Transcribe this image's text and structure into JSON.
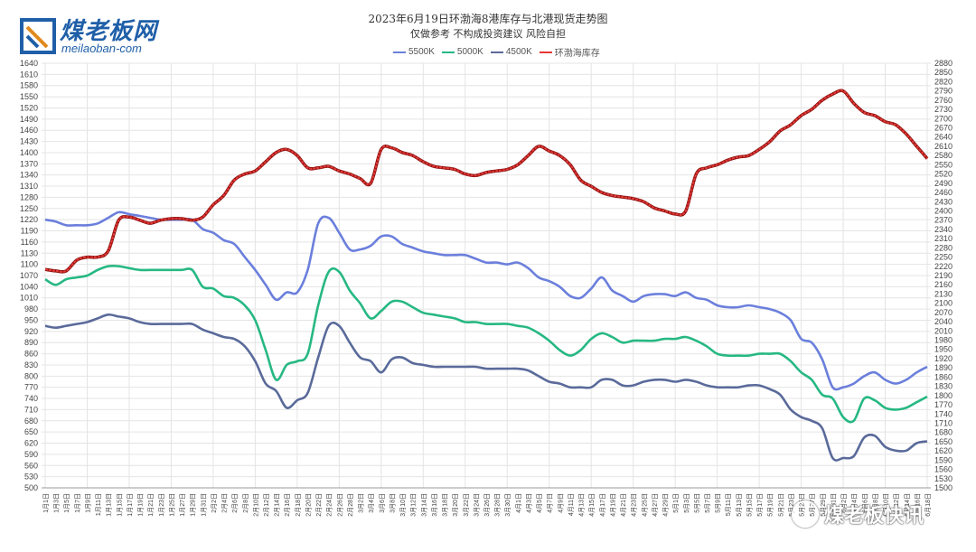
{
  "header": {
    "logo_cn": "煤老板网",
    "logo_en": "meilaoban-com",
    "title": "2023年6月19日环渤海8港库存与北港现货走势图",
    "subtitle": "仅做参考 不构成投资建议 风险自担"
  },
  "watermark": {
    "text": "煤老板快讯",
    "icon": "wechat-icon"
  },
  "chart_data": {
    "type": "line",
    "title": "2023年6月19日环渤海8港库存与北港现货走势图",
    "subtitle": "仅做参考 不构成投资建议 风险自担",
    "legend_position": "top-center",
    "x_ticks": [
      "1月1日",
      "1月3日",
      "1月5日",
      "1月7日",
      "1月9日",
      "1月11日",
      "1月13日",
      "1月15日",
      "1月17日",
      "1月19日",
      "1月21日",
      "1月23日",
      "1月25日",
      "1月27日",
      "1月29日",
      "1月31日",
      "2月2日",
      "2月4日",
      "2月6日",
      "2月8日",
      "2月10日",
      "2月12日",
      "2月14日",
      "2月16日",
      "2月18日",
      "2月20日",
      "2月22日",
      "2月24日",
      "2月26日",
      "2月28日",
      "3月2日",
      "3月4日",
      "3月6日",
      "3月8日",
      "3月10日",
      "3月12日",
      "3月14日",
      "3月16日",
      "3月18日",
      "3月20日",
      "3月22日",
      "3月24日",
      "3月26日",
      "3月28日",
      "3月30日",
      "4月1日",
      "4月3日",
      "4月5日",
      "4月7日",
      "4月9日",
      "4月11日",
      "4月13日",
      "4月15日",
      "4月17日",
      "4月19日",
      "4月21日",
      "4月23日",
      "4月25日",
      "4月27日",
      "4月29日",
      "5月1日",
      "5月3日",
      "5月5日",
      "5月7日",
      "5月9日",
      "5月11日",
      "5月13日",
      "5月15日",
      "5月17日",
      "5月19日",
      "5月21日",
      "5月23日",
      "5月25日",
      "5月27日",
      "5月29日",
      "5月31日",
      "6月2日",
      "6月4日",
      "6月6日",
      "6月8日",
      "6月10日",
      "6月12日",
      "6月14日",
      "6月16日",
      "6月18日"
    ],
    "y_left": {
      "min": 500,
      "max": 1640,
      "step": 30
    },
    "y_right": {
      "min": 1500,
      "max": 2880,
      "step": 30
    },
    "series": [
      {
        "name": "5500K",
        "color": "#6b7fdc",
        "axis": "left",
        "values": [
          1220,
          1215,
          1205,
          1205,
          1205,
          1210,
          1225,
          1240,
          1235,
          1230,
          1225,
          1220,
          1220,
          1220,
          1220,
          1195,
          1185,
          1165,
          1155,
          1120,
          1085,
          1045,
          1005,
          1025,
          1025,
          1085,
          1210,
          1225,
          1185,
          1140,
          1140,
          1150,
          1175,
          1175,
          1155,
          1145,
          1135,
          1130,
          1125,
          1125,
          1125,
          1115,
          1105,
          1105,
          1100,
          1105,
          1090,
          1065,
          1055,
          1040,
          1015,
          1010,
          1035,
          1065,
          1030,
          1015,
          1000,
          1015,
          1020,
          1020,
          1015,
          1025,
          1010,
          1005,
          990,
          985,
          985,
          990,
          985,
          980,
          970,
          950,
          900,
          890,
          845,
          770,
          770,
          780,
          800,
          810,
          790,
          780,
          790,
          810,
          825
        ]
      },
      {
        "name": "5000K",
        "color": "#26b883",
        "axis": "left",
        "values": [
          1060,
          1045,
          1060,
          1065,
          1070,
          1085,
          1095,
          1095,
          1090,
          1085,
          1085,
          1085,
          1085,
          1085,
          1085,
          1040,
          1035,
          1015,
          1010,
          990,
          950,
          870,
          790,
          830,
          840,
          860,
          990,
          1080,
          1080,
          1030,
          995,
          955,
          975,
          1000,
          1000,
          985,
          970,
          965,
          960,
          955,
          945,
          945,
          940,
          940,
          940,
          935,
          930,
          915,
          895,
          870,
          855,
          870,
          900,
          915,
          905,
          890,
          895,
          895,
          895,
          900,
          900,
          905,
          895,
          880,
          860,
          855,
          855,
          855,
          860,
          860,
          860,
          840,
          810,
          790,
          750,
          740,
          690,
          680,
          740,
          735,
          715,
          710,
          715,
          730,
          745
        ]
      },
      {
        "name": "4500K",
        "color": "#5a6a9a",
        "axis": "left",
        "values": [
          935,
          930,
          935,
          940,
          945,
          955,
          965,
          960,
          955,
          945,
          940,
          940,
          940,
          940,
          940,
          925,
          915,
          905,
          900,
          880,
          840,
          780,
          760,
          715,
          735,
          755,
          850,
          935,
          935,
          890,
          850,
          840,
          810,
          845,
          850,
          835,
          830,
          825,
          825,
          825,
          825,
          825,
          820,
          820,
          820,
          820,
          815,
          800,
          785,
          780,
          770,
          770,
          770,
          790,
          790,
          775,
          775,
          785,
          790,
          790,
          785,
          790,
          785,
          775,
          770,
          770,
          770,
          775,
          775,
          765,
          750,
          710,
          690,
          680,
          660,
          580,
          580,
          585,
          635,
          640,
          610,
          600,
          600,
          620,
          625
        ]
      },
      {
        "name": "环渤海库存",
        "color": "#e53935",
        "axis": "right",
        "values": [
          2210,
          2205,
          2205,
          2240,
          2250,
          2250,
          2270,
          2370,
          2380,
          2370,
          2360,
          2370,
          2375,
          2375,
          2370,
          2380,
          2420,
          2450,
          2500,
          2520,
          2530,
          2560,
          2590,
          2600,
          2580,
          2540,
          2540,
          2545,
          2530,
          2520,
          2505,
          2490,
          2600,
          2605,
          2590,
          2580,
          2560,
          2545,
          2540,
          2535,
          2520,
          2515,
          2525,
          2530,
          2535,
          2550,
          2580,
          2610,
          2595,
          2580,
          2550,
          2500,
          2480,
          2460,
          2450,
          2445,
          2440,
          2430,
          2410,
          2400,
          2390,
          2400,
          2520,
          2540,
          2550,
          2565,
          2575,
          2580,
          2600,
          2625,
          2660,
          2680,
          2710,
          2730,
          2760,
          2780,
          2790,
          2750,
          2720,
          2710,
          2690,
          2680,
          2650,
          2610,
          2570
        ]
      }
    ]
  }
}
